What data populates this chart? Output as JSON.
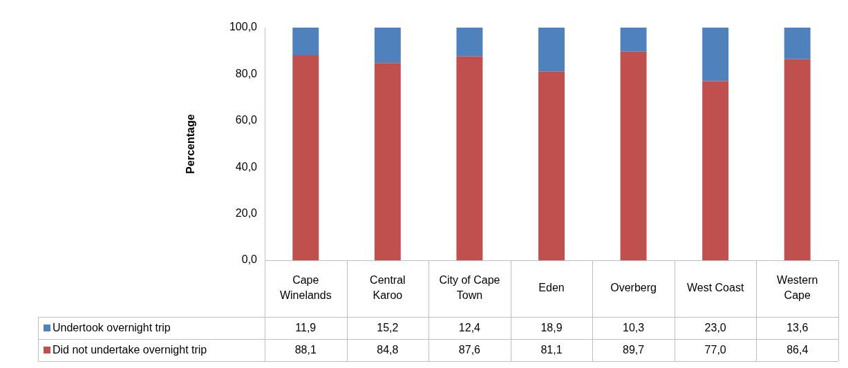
{
  "chart_data": {
    "type": "bar",
    "ylabel": "Percentage",
    "stacked": true,
    "grid": false,
    "legend": "bottom",
    "categories": [
      "Cape Winelands",
      "Central Karoo",
      "City of Cape Town",
      "Eden",
      "Overberg",
      "West Coast",
      "Western Cape"
    ],
    "ylim": [
      0,
      100
    ],
    "yticks": [
      {
        "value": 0,
        "label": "0,0"
      },
      {
        "value": 20,
        "label": "20,0"
      },
      {
        "value": 40,
        "label": "40,0"
      },
      {
        "value": 60,
        "label": "60,0"
      },
      {
        "value": 80,
        "label": "80,0"
      },
      {
        "value": 100,
        "label": "100,0"
      }
    ],
    "series": [
      {
        "name": "Did not undertake overnight trip",
        "color": "#c0504d",
        "values": [
          88.1,
          84.8,
          87.6,
          81.1,
          89.7,
          77.0,
          86.4
        ],
        "value_labels": [
          "88,1",
          "84,8",
          "87,6",
          "81,1",
          "89,7",
          "77,0",
          "86,4"
        ]
      },
      {
        "name": "Undertook overnight trip",
        "color": "#4f81bd",
        "values": [
          11.9,
          15.2,
          12.4,
          18.9,
          10.3,
          23.0,
          13.6
        ],
        "value_labels": [
          "11,9",
          "15,2",
          "12,4",
          "18,9",
          "10,3",
          "23,0",
          "13,6"
        ]
      }
    ]
  }
}
